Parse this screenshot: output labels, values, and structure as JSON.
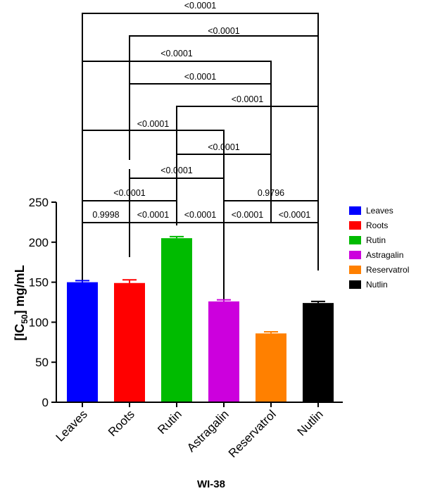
{
  "chart_data": {
    "type": "bar",
    "categories": [
      "Leaves",
      "Roots",
      "Rutin",
      "Astragalin",
      "Reservatrol",
      "Nutlin"
    ],
    "values": [
      150,
      149,
      205,
      126,
      86,
      124
    ],
    "errors": [
      2,
      4,
      2,
      2,
      2,
      2
    ],
    "colors": [
      "#0000ff",
      "#ff0000",
      "#00bb00",
      "#cc00dd",
      "#ff8000",
      "#000000"
    ],
    "ylim": [
      0,
      250
    ],
    "yticks": [
      0,
      50,
      100,
      150,
      200,
      250
    ],
    "ylabel_main": "[IC",
    "ylabel_sub": "50",
    "ylabel_tail": "] mg/mL",
    "xlabel": "WI-38",
    "legend": [
      "Leaves",
      "Roots",
      "Rutin",
      "Astragalin",
      "Reservatrol",
      "Nutlin"
    ],
    "legend_position": "right",
    "comparisons": [
      {
        "a": 0,
        "b": 5,
        "p": "<0.0001"
      },
      {
        "a": 1,
        "b": 5,
        "p": "<0.0001"
      },
      {
        "a": 0,
        "b": 4,
        "p": "<0.0001"
      },
      {
        "a": 1,
        "b": 4,
        "p": "<0.0001"
      },
      {
        "a": 2,
        "b": 5,
        "p": "<0.0001"
      },
      {
        "a": 0,
        "b": 3,
        "p": "<0.0001"
      },
      {
        "a": 2,
        "b": 4,
        "p": "<0.0001"
      },
      {
        "a": 1,
        "b": 3,
        "p": "<0.0001"
      },
      {
        "a": 0,
        "b": 2,
        "p": "<0.0001"
      },
      {
        "a": 3,
        "b": 5,
        "p": "0.9796"
      },
      {
        "a": 0,
        "b": 1,
        "p": "0.9998"
      },
      {
        "a": 1,
        "b": 2,
        "p": "<0.0001"
      },
      {
        "a": 2,
        "b": 3,
        "p": "<0.0001"
      },
      {
        "a": 3,
        "b": 4,
        "p": "<0.0001"
      },
      {
        "a": 4,
        "b": 5,
        "p": "<0.0001"
      }
    ]
  }
}
